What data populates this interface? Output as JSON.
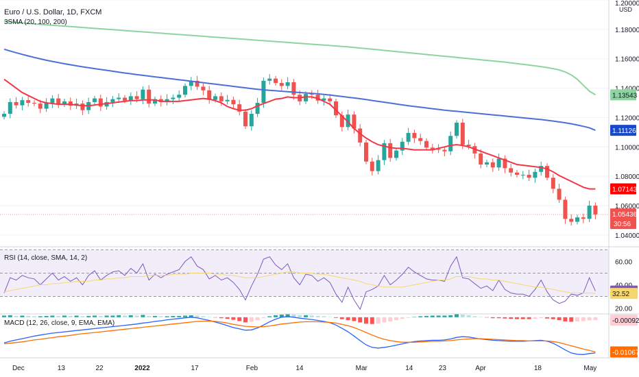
{
  "header": {
    "symbol_title": "Euro / U.S. Dollar, 1D, FXCM",
    "sma_legend": "3SMA (20, 100, 200)",
    "rsi_legend": "RSI (14, close, SMA, 14, 2)",
    "macd_legend": "MACD (12, 26, close, 9, EMA, EMA)"
  },
  "colors": {
    "up": "#26a69a",
    "down": "#ef5350",
    "sma20": "#f23645",
    "sma100": "#4a6fd6",
    "sma200": "#8ed4a0",
    "rsi": "#7e57c2",
    "rsi_ma": "#f5d76e",
    "macd": "#2962ff",
    "signal": "#ff6d00"
  },
  "chart_data": [
    {
      "type": "candlestick",
      "title": "Euro / U.S. Dollar, 1D, FXCM",
      "currency": "USD",
      "ylim": [
        1.032,
        1.2
      ],
      "y_ticks": [
        "1.20000",
        "1.18000",
        "1.16000",
        "1.14000",
        "1.12000",
        "1.10000",
        "1.08000",
        "1.06000",
        "1.04000"
      ],
      "x_ticks": [
        "Dec",
        "13",
        "22",
        "2022",
        "17",
        "Feb",
        "14",
        "Mar",
        "14",
        "23",
        "Apr",
        "18",
        "May"
      ],
      "price_labels": [
        {
          "text": "1.13543",
          "value": 1.13543,
          "series": "SMA 200"
        },
        {
          "text": "1.11126",
          "value": 1.11126,
          "series": "SMA 100"
        },
        {
          "text": "1.07143",
          "value": 1.07143,
          "series": "SMA 20"
        },
        {
          "text": "1.05436",
          "value": 1.05436,
          "series": "Last price"
        }
      ],
      "countdown": "30:56",
      "closes": [
        1.1225,
        1.1305,
        1.1283,
        1.1318,
        1.13,
        1.1295,
        1.126,
        1.1298,
        1.133,
        1.129,
        1.131,
        1.128,
        1.1295,
        1.125,
        1.1305,
        1.133,
        1.1275,
        1.1305,
        1.1325,
        1.1335,
        1.1315,
        1.1345,
        1.1325,
        1.139,
        1.1295,
        1.1325,
        1.1305,
        1.1325,
        1.1335,
        1.1355,
        1.1415,
        1.145,
        1.141,
        1.1385,
        1.132,
        1.1345,
        1.131,
        1.132,
        1.129,
        1.124,
        1.114,
        1.1225,
        1.13,
        1.145,
        1.1465,
        1.1435,
        1.1415,
        1.144,
        1.1355,
        1.131,
        1.136,
        1.1355,
        1.1315,
        1.133,
        1.131,
        1.1215,
        1.1135,
        1.122,
        1.1125,
        1.103,
        1.09,
        1.0835,
        1.091,
        1.1025,
        1.0925,
        1.0975,
        1.1035,
        1.1095,
        1.106,
        1.104,
        1.0995,
        1.0985,
        1.098,
        1.097,
        1.1075,
        1.1165,
        1.1015,
        1.1005,
        1.0955,
        1.088,
        1.0895,
        1.086,
        1.092,
        1.0855,
        1.0825,
        1.081,
        1.081,
        1.079,
        1.083,
        1.087,
        1.079,
        1.0715,
        1.064,
        1.051,
        1.049,
        1.052,
        1.051,
        1.06,
        1.054
      ],
      "series": [
        {
          "name": "SMA 20",
          "values": [
            1.146,
            1.143,
            1.14,
            1.137,
            1.135,
            1.133,
            1.131,
            1.13,
            1.1295,
            1.129,
            1.129,
            1.129,
            1.1285,
            1.128,
            1.128,
            1.1285,
            1.129,
            1.1295,
            1.13,
            1.1305,
            1.131,
            1.1315,
            1.1315,
            1.132,
            1.132,
            1.132,
            1.131,
            1.131,
            1.131,
            1.131,
            1.1315,
            1.132,
            1.1325,
            1.133,
            1.1325,
            1.1315,
            1.13,
            1.1275,
            1.126,
            1.125,
            1.125,
            1.126,
            1.128,
            1.1295,
            1.131,
            1.1325,
            1.133,
            1.134,
            1.1335,
            1.1335,
            1.134,
            1.134,
            1.133,
            1.131,
            1.129,
            1.125,
            1.121,
            1.117,
            1.1125,
            1.109,
            1.106,
            1.1035,
            1.1015,
            1.1005,
            1.0995,
            1.099,
            1.099,
            1.0985,
            1.098,
            1.098,
            1.098,
            1.098,
            1.099,
            1.1,
            1.101,
            1.1015,
            1.101,
            1.1,
            1.0985,
            1.097,
            1.0955,
            1.094,
            1.0925,
            1.091,
            1.0895,
            1.088,
            1.0875,
            1.087,
            1.0865,
            1.086,
            1.085,
            1.083,
            1.0805,
            1.0785,
            1.0765,
            1.0745,
            1.0725,
            1.0714,
            1.0714
          ]
        },
        {
          "name": "SMA 100",
          "values": [
            1.1665,
            1.1653,
            1.1641,
            1.163,
            1.1619,
            1.1609,
            1.1599,
            1.159,
            1.1582,
            1.1574,
            1.1566,
            1.1559,
            1.1552,
            1.1545,
            1.1539,
            1.1533,
            1.1527,
            1.1521,
            1.1515,
            1.1509,
            1.1503,
            1.1498,
            1.1492,
            1.1487,
            1.1482,
            1.1477,
            1.1472,
            1.1467,
            1.1462,
            1.1457,
            1.1452,
            1.1447,
            1.1442,
            1.1437,
            1.1432,
            1.1427,
            1.1422,
            1.1417,
            1.1412,
            1.1407,
            1.1402,
            1.1397,
            1.1392,
            1.1388,
            1.1385,
            1.1382,
            1.1379,
            1.1376,
            1.1373,
            1.137,
            1.1367,
            1.1364,
            1.1361,
            1.1357,
            1.1353,
            1.1348,
            1.1343,
            1.1338,
            1.1333,
            1.1328,
            1.1322,
            1.1316,
            1.131,
            1.1304,
            1.1298,
            1.1292,
            1.1286,
            1.128,
            1.1275,
            1.127,
            1.1265,
            1.126,
            1.1255,
            1.125,
            1.1246,
            1.1242,
            1.1238,
            1.1234,
            1.123,
            1.1226,
            1.1222,
            1.1218,
            1.1214,
            1.121,
            1.1206,
            1.1202,
            1.1198,
            1.1194,
            1.119,
            1.1186,
            1.1181,
            1.1176,
            1.117,
            1.1164,
            1.1157,
            1.1149,
            1.114,
            1.113,
            1.1113
          ]
        },
        {
          "name": "SMA 200",
          "values": [
            1.1855,
            1.1851,
            1.1847,
            1.1843,
            1.184,
            1.1837,
            1.1834,
            1.1831,
            1.1828,
            1.1825,
            1.1822,
            1.1819,
            1.1816,
            1.1813,
            1.181,
            1.1807,
            1.1804,
            1.1801,
            1.1798,
            1.1795,
            1.1792,
            1.1789,
            1.1786,
            1.1783,
            1.178,
            1.1777,
            1.1774,
            1.1771,
            1.1768,
            1.1765,
            1.1762,
            1.1759,
            1.1756,
            1.1753,
            1.175,
            1.1747,
            1.1744,
            1.1741,
            1.1738,
            1.1735,
            1.1732,
            1.1729,
            1.1726,
            1.1723,
            1.172,
            1.1717,
            1.1714,
            1.1711,
            1.1708,
            1.1705,
            1.1702,
            1.1699,
            1.1696,
            1.1693,
            1.169,
            1.1687,
            1.1684,
            1.1681,
            1.1677,
            1.1673,
            1.1669,
            1.1665,
            1.1661,
            1.1657,
            1.1653,
            1.1649,
            1.1645,
            1.1641,
            1.1637,
            1.1633,
            1.1629,
            1.1625,
            1.1621,
            1.1617,
            1.1613,
            1.1609,
            1.1605,
            1.1601,
            1.1597,
            1.1593,
            1.1589,
            1.1585,
            1.1581,
            1.1577,
            1.1572,
            1.1567,
            1.1562,
            1.1557,
            1.1552,
            1.1546,
            1.154,
            1.1533,
            1.1524,
            1.151,
            1.149,
            1.146,
            1.142,
            1.138,
            1.1354
          ]
        }
      ]
    },
    {
      "type": "line",
      "title": "RSI (14, close, SMA, 14, 2)",
      "ylim": [
        15,
        72
      ],
      "y_ticks": [
        "60.00",
        "40.00",
        "20.00"
      ],
      "levels": [
        70,
        50,
        30
      ],
      "value_labels": [
        {
          "text": "34.60",
          "value": 34.6
        },
        {
          "text": "32.52",
          "value": 32.52
        }
      ],
      "series": [
        {
          "name": "RSI",
          "values": [
            33,
            46,
            44,
            48,
            46,
            45,
            40,
            45,
            50,
            44,
            47,
            43,
            46,
            40,
            48,
            52,
            44,
            48,
            51,
            52,
            48,
            54,
            50,
            58,
            44,
            49,
            46,
            49,
            51,
            53,
            60,
            64,
            56,
            53,
            45,
            48,
            44,
            46,
            42,
            36,
            27,
            39,
            49,
            62,
            64,
            57,
            53,
            58,
            46,
            40,
            49,
            48,
            43,
            46,
            42,
            32,
            25,
            38,
            27,
            19,
            34,
            36,
            39,
            48,
            40,
            44,
            49,
            55,
            51,
            48,
            45,
            44,
            44,
            43,
            56,
            64,
            46,
            45,
            41,
            37,
            39,
            35,
            44,
            36,
            33,
            32,
            32,
            30,
            36,
            44,
            34,
            27,
            24,
            26,
            32,
            31,
            33,
            46,
            34.6
          ]
        },
        {
          "name": "RSI MA",
          "values": [
            34,
            35,
            36,
            37,
            38,
            39,
            40,
            40,
            41,
            41,
            42,
            42,
            43,
            43,
            43,
            44,
            44,
            45,
            45,
            46,
            46,
            47,
            47,
            47,
            48,
            48,
            48,
            48,
            49,
            49,
            49,
            50,
            50,
            50,
            50,
            49,
            49,
            48,
            48,
            47,
            46,
            46,
            46,
            47,
            48,
            49,
            50,
            51,
            51,
            50,
            50,
            50,
            49,
            49,
            48,
            47,
            46,
            45,
            44,
            43,
            41,
            40,
            39,
            38,
            38,
            38,
            38,
            39,
            40,
            41,
            42,
            43,
            44,
            44,
            45,
            47,
            47,
            47,
            46,
            45,
            45,
            44,
            44,
            43,
            42,
            41,
            40,
            39,
            38,
            38,
            37,
            36,
            35,
            34,
            33,
            33,
            33,
            33,
            32.5
          ]
        }
      ]
    },
    {
      "type": "bar",
      "title": "MACD (12, 26, close, 9, EMA, EMA)",
      "ylim": [
        -0.0125,
        0.0008
      ],
      "value_labels": [
        {
          "text": "-0.00092",
          "value": -0.00092
        },
        {
          "text": "-0.01067",
          "value": -0.01067
        }
      ],
      "series": [
        {
          "name": "Histogram",
          "values": [
            0.0005,
            0.0006,
            0.0004,
            0.0005,
            0.0004,
            0.0003,
            0.0003,
            0.0004,
            0.0005,
            0.0004,
            0.0005,
            0.0004,
            0.0005,
            0.0003,
            0.0004,
            0.0005,
            0.0004,
            0.0005,
            0.0005,
            0.0006,
            0.0005,
            0.0006,
            0.0005,
            0.0007,
            0.0004,
            0.0004,
            0.0003,
            0.0003,
            0.0004,
            0.0004,
            0.0005,
            0.0006,
            0.0005,
            0.0003,
            0.0001,
            -0.0001,
            -0.0003,
            -0.0005,
            -0.0008,
            -0.0012,
            -0.0016,
            -0.0014,
            -0.0009,
            -0.0003,
            0.0003,
            0.0006,
            0.0008,
            0.0009,
            0.0008,
            0.0006,
            0.0006,
            0.0005,
            0.0004,
            0.0003,
            0.0001,
            -0.0002,
            -0.0006,
            -0.0009,
            -0.0012,
            -0.0016,
            -0.002,
            -0.0021,
            -0.002,
            -0.0016,
            -0.0013,
            -0.0009,
            -0.0005,
            -0.0002,
            0.0001,
            0.0003,
            0.0004,
            0.0005,
            0.0005,
            0.0005,
            0.0006,
            0.0009,
            0.0008,
            0.0006,
            0.0003,
            0.0001,
            -0.0001,
            -0.0003,
            -0.0003,
            -0.0004,
            -0.0005,
            -0.0006,
            -0.0006,
            -0.0006,
            -0.0005,
            -0.0003,
            -0.0004,
            -0.0006,
            -0.0009,
            -0.0013,
            -0.0014,
            -0.0013,
            -0.0012,
            -0.001,
            -0.0009
          ]
        },
        {
          "name": "MACD",
          "values": [
            -0.0079,
            -0.0074,
            -0.007,
            -0.0066,
            -0.0062,
            -0.0058,
            -0.0055,
            -0.0052,
            -0.0049,
            -0.0047,
            -0.0045,
            -0.0043,
            -0.0041,
            -0.0039,
            -0.0037,
            -0.0035,
            -0.0033,
            -0.0031,
            -0.0029,
            -0.0027,
            -0.0025,
            -0.0023,
            -0.0021,
            -0.0018,
            -0.0016,
            -0.0013,
            -0.0011,
            -0.0008,
            -0.0006,
            -0.0004,
            -0.0002,
            0.0,
            -0.0002,
            -0.0006,
            -0.001,
            -0.0015,
            -0.002,
            -0.0026,
            -0.0032,
            -0.0036,
            -0.004,
            -0.0039,
            -0.0033,
            -0.0024,
            -0.0014,
            -0.0006,
            0.0,
            0.0002,
            0.0,
            -0.0003,
            -0.0005,
            -0.0007,
            -0.001,
            -0.0013,
            -0.0017,
            -0.0024,
            -0.0034,
            -0.0045,
            -0.0058,
            -0.0072,
            -0.0085,
            -0.0093,
            -0.0095,
            -0.0093,
            -0.009,
            -0.0086,
            -0.0082,
            -0.0078,
            -0.0075,
            -0.0073,
            -0.0072,
            -0.0071,
            -0.0071,
            -0.007,
            -0.0067,
            -0.0062,
            -0.006,
            -0.0061,
            -0.0064,
            -0.0067,
            -0.0069,
            -0.0071,
            -0.0072,
            -0.0073,
            -0.0074,
            -0.0074,
            -0.0074,
            -0.0073,
            -0.0072,
            -0.0071,
            -0.0074,
            -0.008,
            -0.009,
            -0.0101,
            -0.011,
            -0.0114,
            -0.0115,
            -0.0112,
            -0.011
          ]
        },
        {
          "name": "Signal",
          "values": [
            -0.0082,
            -0.008,
            -0.0078,
            -0.0076,
            -0.0073,
            -0.007,
            -0.0068,
            -0.0065,
            -0.0063,
            -0.006,
            -0.0058,
            -0.0056,
            -0.0053,
            -0.0051,
            -0.0049,
            -0.0047,
            -0.0045,
            -0.0043,
            -0.0041,
            -0.0039,
            -0.0037,
            -0.0035,
            -0.0033,
            -0.0031,
            -0.0029,
            -0.0027,
            -0.0025,
            -0.0023,
            -0.0021,
            -0.0019,
            -0.0017,
            -0.0015,
            -0.0013,
            -0.0012,
            -0.0012,
            -0.0013,
            -0.0015,
            -0.0018,
            -0.0022,
            -0.0025,
            -0.0028,
            -0.0029,
            -0.003,
            -0.0029,
            -0.0027,
            -0.0024,
            -0.0021,
            -0.0019,
            -0.0017,
            -0.0015,
            -0.0014,
            -0.0014,
            -0.0014,
            -0.0015,
            -0.0016,
            -0.0018,
            -0.0022,
            -0.0026,
            -0.0032,
            -0.0039,
            -0.0047,
            -0.0055,
            -0.0062,
            -0.0068,
            -0.0072,
            -0.0075,
            -0.0077,
            -0.0077,
            -0.0077,
            -0.0076,
            -0.0075,
            -0.0074,
            -0.0074,
            -0.0073,
            -0.0072,
            -0.007,
            -0.0068,
            -0.0067,
            -0.0066,
            -0.0066,
            -0.0067,
            -0.0068,
            -0.0069,
            -0.007,
            -0.0071,
            -0.0072,
            -0.0072,
            -0.0073,
            -0.0073,
            -0.0073,
            -0.0073,
            -0.0075,
            -0.0078,
            -0.0083,
            -0.0088,
            -0.0093,
            -0.0098,
            -0.0102,
            -0.0107
          ]
        }
      ]
    }
  ]
}
